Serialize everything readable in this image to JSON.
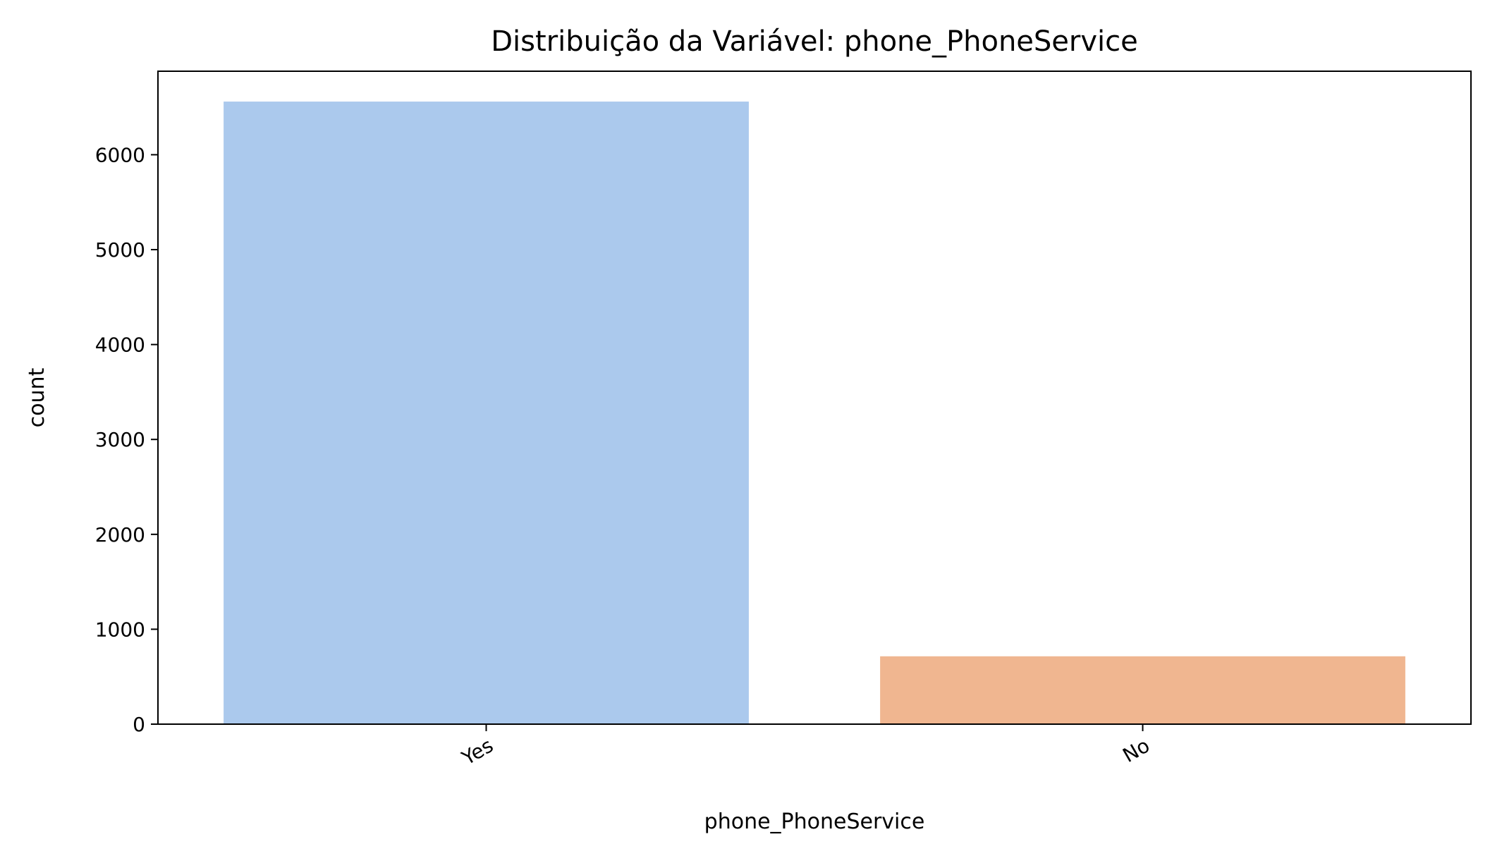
{
  "chart_data": {
    "type": "bar",
    "title": "Distribuição da Variável: phone_PhoneService",
    "xlabel": "phone_PhoneService",
    "ylabel": "count",
    "categories": [
      "Yes",
      "No"
    ],
    "values": [
      6560,
      715
    ],
    "colors": [
      "#abc9ed",
      "#f0b690"
    ],
    "ylim": [
      0,
      6880
    ],
    "yticks": [
      0,
      1000,
      2000,
      3000,
      4000,
      5000,
      6000
    ],
    "ytick_labels": [
      "0",
      "1000",
      "2000",
      "3000",
      "4000",
      "5000",
      "6000"
    ],
    "grid": false,
    "legend": "none"
  }
}
